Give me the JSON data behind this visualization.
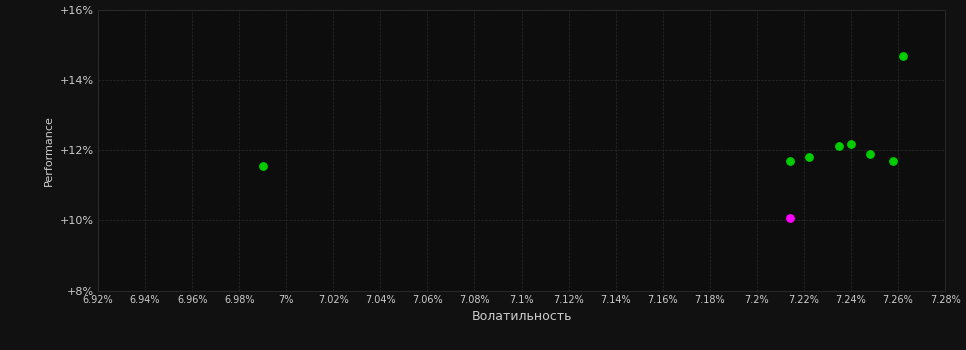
{
  "background_color": "#111111",
  "plot_bg_color": "#0d0d0d",
  "grid_color": "#2a2a2a",
  "text_color": "#cccccc",
  "xlabel": "Волатильность",
  "ylabel": "Performance",
  "xlim": [
    6.92,
    7.28
  ],
  "ylim": [
    8.0,
    16.0
  ],
  "xticks": [
    6.92,
    6.94,
    6.96,
    6.98,
    7.0,
    7.02,
    7.04,
    7.06,
    7.08,
    7.1,
    7.12,
    7.14,
    7.16,
    7.18,
    7.2,
    7.22,
    7.24,
    7.26,
    7.28
  ],
  "xtick_labels": [
    "6.92%",
    "6.94%",
    "6.96%",
    "6.98%",
    "7%",
    "7.02%",
    "7.04%",
    "7.06%",
    "7.08%",
    "7.1%",
    "7.12%",
    "7.14%",
    "7.16%",
    "7.18%",
    "7.2%",
    "7.22%",
    "7.24%",
    "7.26%",
    "7.28%"
  ],
  "yticks": [
    8.0,
    10.0,
    12.0,
    14.0,
    16.0
  ],
  "ytick_labels": [
    "+8%",
    "+10%",
    "+12%",
    "+14%",
    "+16%"
  ],
  "green_x": [
    6.99,
    7.214,
    7.222,
    7.235,
    7.24,
    7.248,
    7.258,
    7.262
  ],
  "green_y": [
    11.55,
    11.68,
    11.8,
    12.12,
    12.18,
    11.88,
    11.68,
    14.68
  ],
  "magenta_x": [
    7.214
  ],
  "magenta_y": [
    10.08
  ],
  "marker_size_green": 40,
  "marker_size_magenta": 40
}
